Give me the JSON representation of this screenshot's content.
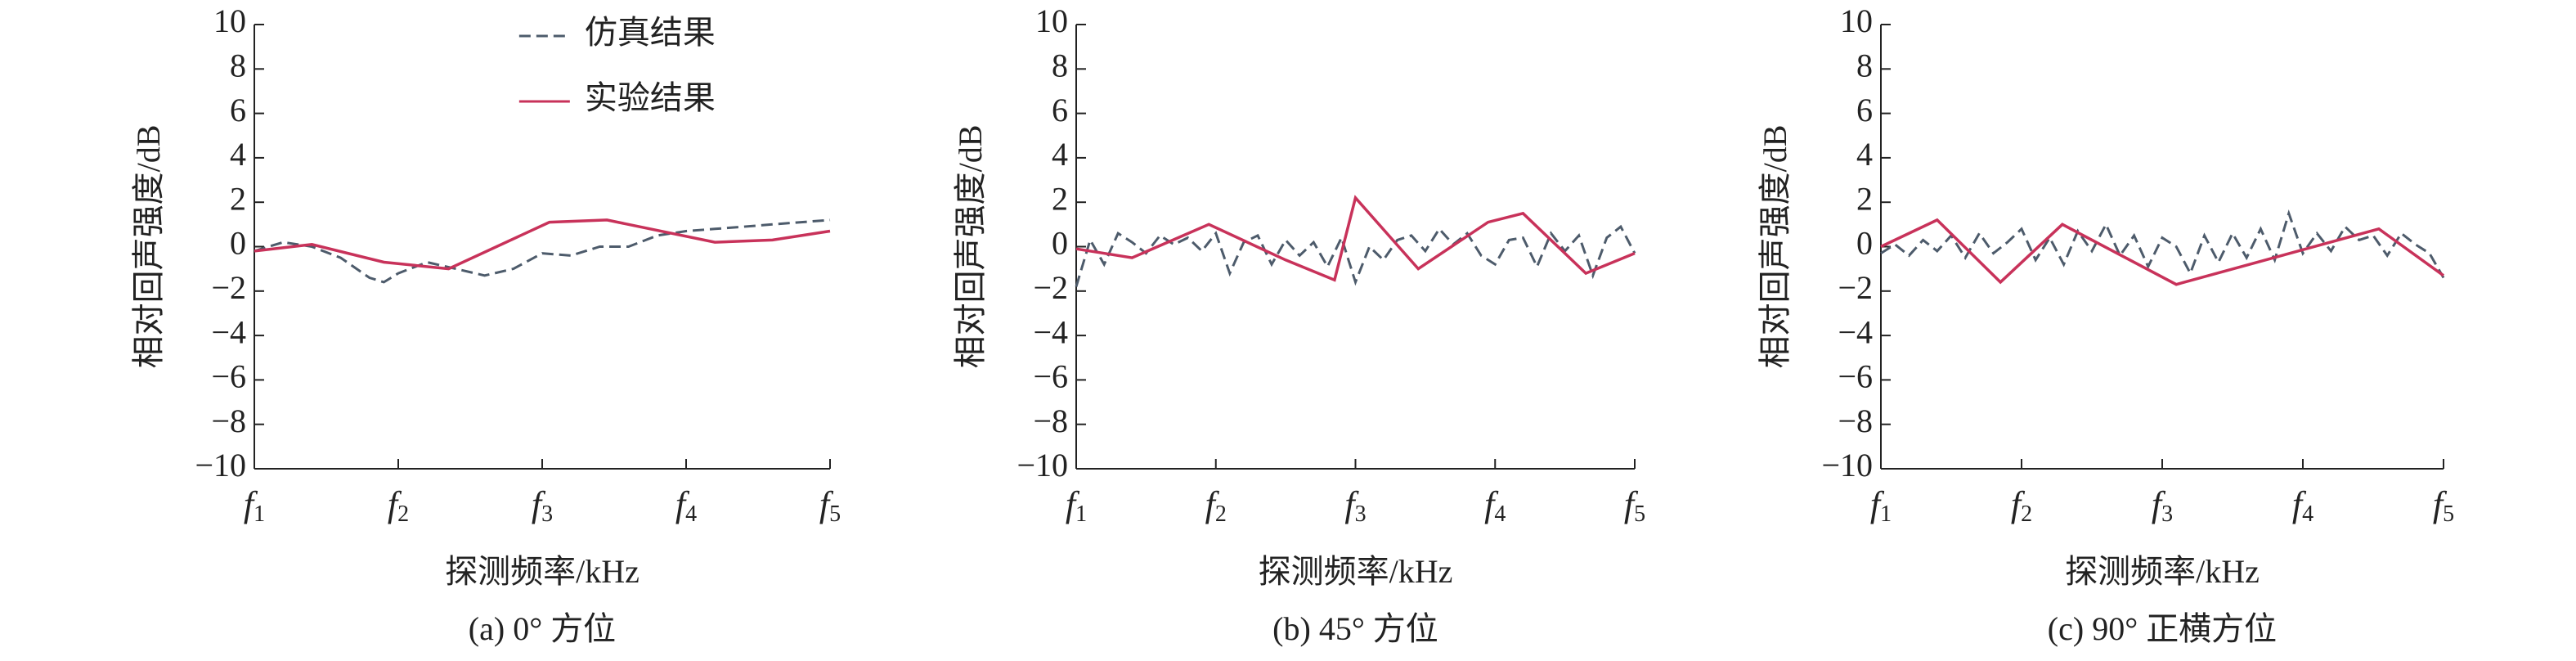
{
  "chart_data": [
    {
      "type": "line",
      "title": "(a) 0° 方位",
      "xlabel": "探测频率/kHz",
      "ylabel": "相对回声强度/dB",
      "xlim": [
        1,
        5
      ],
      "ylim": [
        -10,
        10
      ],
      "legend": "upper right",
      "xticks": [
        {
          "value": 1,
          "label": "f1"
        },
        {
          "value": 2,
          "label": "f2"
        },
        {
          "value": 3,
          "label": "f3"
        },
        {
          "value": 4,
          "label": "f4"
        },
        {
          "value": 5,
          "label": "f5"
        }
      ],
      "yticks": [
        {
          "value": -10,
          "label": "−10"
        },
        {
          "value": -8,
          "label": "−8"
        },
        {
          "value": -6,
          "label": "−6"
        },
        {
          "value": -4,
          "label": "−4"
        },
        {
          "value": -2,
          "label": "−2"
        },
        0,
        2,
        4,
        6,
        8,
        10
      ],
      "series": [
        {
          "name": "仿真结果",
          "color": "#4d5b6b",
          "dashed": true,
          "x": [
            1,
            1.2,
            1.4,
            1.6,
            1.8,
            1.9,
            2,
            2.2,
            2.4,
            2.6,
            2.8,
            3,
            3.2,
            3.4,
            3.6,
            3.8,
            4,
            4.2,
            4.4,
            4.6,
            4.8,
            5
          ],
          "values": [
            -0.2,
            0.2,
            0,
            -0.5,
            -1.4,
            -1.6,
            -1.2,
            -0.7,
            -1.0,
            -1.3,
            -1.0,
            -0.3,
            -0.4,
            0.0,
            0.0,
            0.5,
            0.7,
            0.8,
            0.9,
            1.0,
            1.1,
            1.2
          ]
        },
        {
          "name": "实验结果",
          "color": "#c8325a",
          "dashed": false,
          "x": [
            1,
            1.4,
            1.9,
            2.35,
            3.05,
            3.45,
            4.2,
            4.6,
            5
          ],
          "values": [
            -0.2,
            0.1,
            -0.7,
            -1.0,
            1.1,
            1.2,
            0.2,
            0.3,
            0.7
          ]
        }
      ]
    },
    {
      "type": "line",
      "title": "(b) 45° 方位",
      "xlabel": "探测频率/kHz",
      "ylabel": "相对回声强度/dB",
      "xlim": [
        1,
        5
      ],
      "ylim": [
        -10,
        10
      ],
      "legend": "none",
      "xticks": [
        {
          "value": 1,
          "label": "f1"
        },
        {
          "value": 2,
          "label": "f2"
        },
        {
          "value": 3,
          "label": "f3"
        },
        {
          "value": 4,
          "label": "f4"
        },
        {
          "value": 5,
          "label": "f5"
        }
      ],
      "yticks": [
        {
          "value": -10,
          "label": "−10"
        },
        {
          "value": -8,
          "label": "−8"
        },
        {
          "value": -6,
          "label": "−6"
        },
        {
          "value": -4,
          "label": "−4"
        },
        {
          "value": -2,
          "label": "−2"
        },
        0,
        2,
        4,
        6,
        8,
        10
      ],
      "series": [
        {
          "color": "#4d5b6b",
          "dashed": true,
          "x": [
            1,
            1.1,
            1.2,
            1.3,
            1.4,
            1.5,
            1.6,
            1.7,
            1.8,
            1.9,
            2,
            2.1,
            2.2,
            2.3,
            2.4,
            2.5,
            2.6,
            2.7,
            2.8,
            2.9,
            3,
            3.1,
            3.2,
            3.3,
            3.4,
            3.5,
            3.6,
            3.7,
            3.8,
            3.9,
            4,
            4.1,
            4.2,
            4.3,
            4.4,
            4.5,
            4.6,
            4.7,
            4.8,
            4.9,
            5
          ],
          "values": [
            -1.8,
            0.3,
            -0.8,
            0.6,
            0.2,
            -0.3,
            0.5,
            0.1,
            0.4,
            -0.2,
            0.6,
            -1.2,
            0.2,
            0.5,
            -0.8,
            0.3,
            -0.4,
            0.2,
            -0.9,
            0.4,
            -1.6,
            0.0,
            -0.6,
            0.3,
            0.5,
            -0.2,
            0.8,
            0.1,
            0.6,
            -0.4,
            -0.8,
            0.3,
            0.4,
            -0.9,
            0.6,
            -0.2,
            0.5,
            -1.3,
            0.4,
            0.9,
            -0.3
          ]
        },
        {
          "color": "#c8325a",
          "dashed": false,
          "x": [
            1,
            1.4,
            1.95,
            2.5,
            2.85,
            3,
            3.45,
            3.95,
            4.2,
            4.65,
            5
          ],
          "values": [
            -0.1,
            -0.5,
            1.0,
            -0.6,
            -1.5,
            2.2,
            -1.0,
            1.1,
            1.5,
            -1.2,
            -0.3
          ]
        }
      ]
    },
    {
      "type": "line",
      "title": "(c) 90° 正横方位",
      "xlabel": "探测频率/kHz",
      "ylabel": "相对回声强度/dB",
      "xlim": [
        1,
        5
      ],
      "ylim": [
        -10,
        10
      ],
      "legend": "none",
      "xticks": [
        {
          "value": 1,
          "label": "f1"
        },
        {
          "value": 2,
          "label": "f2"
        },
        {
          "value": 3,
          "label": "f3"
        },
        {
          "value": 4,
          "label": "f4"
        },
        {
          "value": 5,
          "label": "f5"
        }
      ],
      "yticks": [
        {
          "value": -10,
          "label": "−10"
        },
        {
          "value": -8,
          "label": "−8"
        },
        {
          "value": -6,
          "label": "−6"
        },
        {
          "value": -4,
          "label": "−4"
        },
        {
          "value": -2,
          "label": "−2"
        },
        0,
        2,
        4,
        6,
        8,
        10
      ],
      "series": [
        {
          "color": "#4d5b6b",
          "dashed": true,
          "x": [
            1,
            1.1,
            1.2,
            1.3,
            1.4,
            1.5,
            1.6,
            1.7,
            1.8,
            1.9,
            2,
            2.1,
            2.2,
            2.3,
            2.4,
            2.5,
            2.6,
            2.7,
            2.8,
            2.9,
            3,
            3.1,
            3.2,
            3.3,
            3.4,
            3.5,
            3.6,
            3.7,
            3.8,
            3.9,
            4,
            4.1,
            4.2,
            4.3,
            4.4,
            4.5,
            4.6,
            4.7,
            4.8,
            4.9,
            5
          ],
          "values": [
            -0.3,
            0.1,
            -0.4,
            0.3,
            -0.2,
            0.5,
            -0.5,
            0.6,
            -0.3,
            0.2,
            0.8,
            -0.6,
            0.4,
            -0.8,
            0.7,
            -0.2,
            1.0,
            -0.4,
            0.5,
            -0.9,
            0.4,
            0.0,
            -1.2,
            0.5,
            -0.7,
            0.6,
            -0.5,
            0.8,
            -0.6,
            1.5,
            -0.3,
            0.6,
            -0.2,
            0.9,
            0.3,
            0.5,
            -0.4,
            0.6,
            0.1,
            -0.3,
            -1.4
          ]
        },
        {
          "color": "#c8325a",
          "dashed": false,
          "x": [
            1,
            1.4,
            1.85,
            2.29,
            3.1,
            4.54,
            5
          ],
          "values": [
            0,
            1.2,
            -1.6,
            1.0,
            -1.7,
            0.8,
            -1.3
          ]
        }
      ]
    }
  ]
}
